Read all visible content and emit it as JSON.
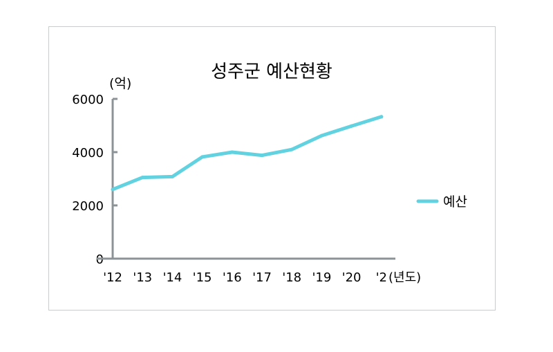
{
  "chart_data": {
    "type": "line",
    "title": "성주군 예산현황",
    "y_unit_label": "(억)",
    "x_unit_label": "(년도)",
    "categories": [
      "'12",
      "'13",
      "'14",
      "'15",
      "'16",
      "'17",
      "'18",
      "'19",
      "'20",
      "'2"
    ],
    "series": [
      {
        "name": "예산",
        "values": [
          2600,
          3050,
          3080,
          3820,
          4000,
          3880,
          4100,
          4620,
          4980,
          5330
        ],
        "color": "#62d2e0"
      }
    ],
    "yticks": [
      "6000",
      "4000",
      "2000",
      "0"
    ],
    "ylim": [
      0,
      6000
    ],
    "legend_position": "right",
    "grid": false,
    "axis_color": "#8c9396"
  }
}
